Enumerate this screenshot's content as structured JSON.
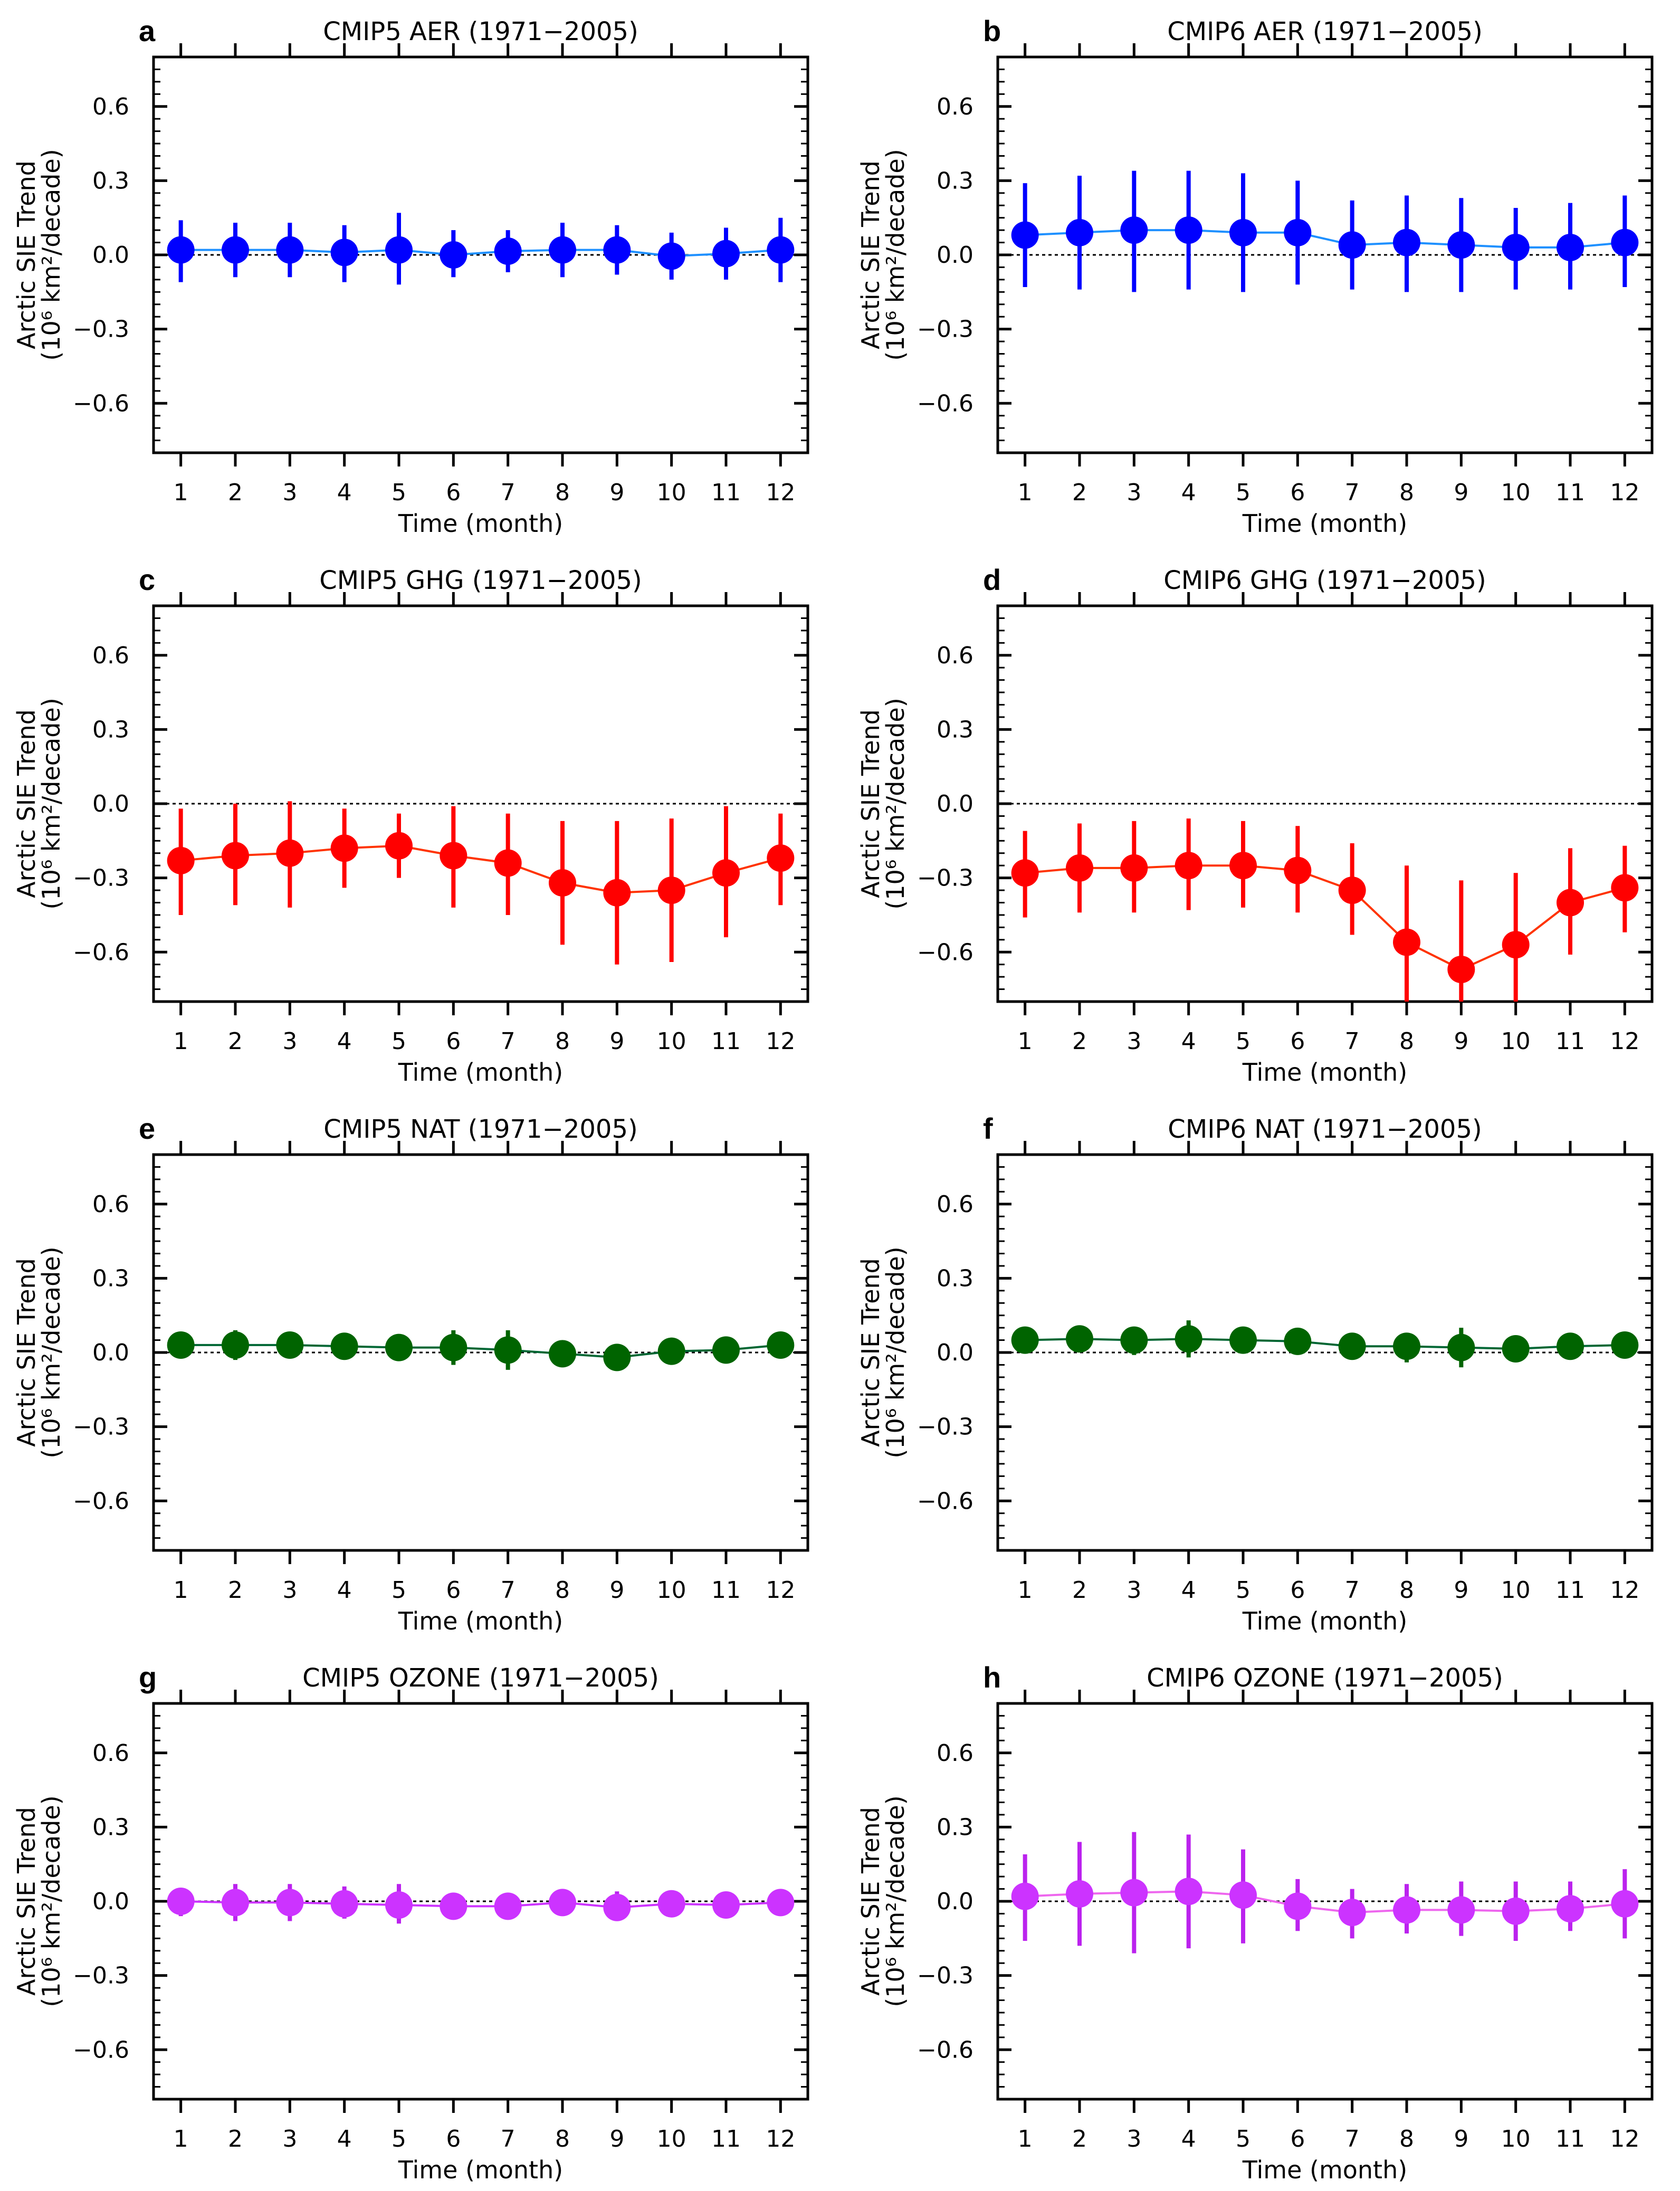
{
  "chart_data": [
    {
      "id": "a",
      "type": "line",
      "letter": "a",
      "title": "CMIP5 AER (1971−2005)",
      "xlabel": "Time (month)",
      "ylabel_line1": "Arctic SIE Trend",
      "ylabel_line2": "(10⁶ km²/decade)",
      "x": [
        1,
        2,
        3,
        4,
        5,
        6,
        7,
        8,
        9,
        10,
        11,
        12
      ],
      "xticklabels": [
        "1",
        "2",
        "3",
        "4",
        "5",
        "6",
        "7",
        "8",
        "9",
        "10",
        "11",
        "12"
      ],
      "yticks": [
        -0.6,
        -0.3,
        0.0,
        0.3,
        0.6
      ],
      "yticklabels": [
        "−0.6",
        "−0.3",
        "0.0",
        "0.3",
        "0.6"
      ],
      "ylim": [
        -0.8,
        0.8
      ],
      "xlim": [
        0.5,
        12.5
      ],
      "zero_line": "dashed",
      "line_color": "#1e90ff",
      "marker_color": "#0000ff",
      "bar_color": "#0000ff",
      "values": [
        0.02,
        0.02,
        0.02,
        0.01,
        0.02,
        0.0,
        0.015,
        0.02,
        0.02,
        -0.005,
        0.005,
        0.02
      ],
      "lower": [
        -0.11,
        -0.09,
        -0.09,
        -0.11,
        -0.12,
        -0.09,
        -0.07,
        -0.09,
        -0.08,
        -0.1,
        -0.1,
        -0.11
      ],
      "upper": [
        0.14,
        0.13,
        0.13,
        0.12,
        0.17,
        0.1,
        0.1,
        0.13,
        0.12,
        0.09,
        0.11,
        0.15
      ]
    },
    {
      "id": "b",
      "type": "line",
      "letter": "b",
      "title": "CMIP6 AER (1971−2005)",
      "xlabel": "Time (month)",
      "ylabel_line1": "Arctic SIE Trend",
      "ylabel_line2": "(10⁶ km²/decade)",
      "x": [
        1,
        2,
        3,
        4,
        5,
        6,
        7,
        8,
        9,
        10,
        11,
        12
      ],
      "xticklabels": [
        "1",
        "2",
        "3",
        "4",
        "5",
        "6",
        "7",
        "8",
        "9",
        "10",
        "11",
        "12"
      ],
      "yticks": [
        -0.6,
        -0.3,
        0.0,
        0.3,
        0.6
      ],
      "yticklabels": [
        "−0.6",
        "−0.3",
        "0.0",
        "0.3",
        "0.6"
      ],
      "ylim": [
        -0.8,
        0.8
      ],
      "xlim": [
        0.5,
        12.5
      ],
      "zero_line": "dashed",
      "line_color": "#1e90ff",
      "marker_color": "#0000ff",
      "bar_color": "#0000ff",
      "values": [
        0.08,
        0.09,
        0.1,
        0.1,
        0.09,
        0.09,
        0.04,
        0.05,
        0.04,
        0.03,
        0.03,
        0.05
      ],
      "lower": [
        -0.13,
        -0.14,
        -0.15,
        -0.14,
        -0.15,
        -0.12,
        -0.14,
        -0.15,
        -0.15,
        -0.14,
        -0.14,
        -0.13
      ],
      "upper": [
        0.29,
        0.32,
        0.34,
        0.34,
        0.33,
        0.3,
        0.22,
        0.24,
        0.23,
        0.19,
        0.21,
        0.24
      ]
    },
    {
      "id": "c",
      "type": "line",
      "letter": "c",
      "title": "CMIP5 GHG (1971−2005)",
      "xlabel": "Time (month)",
      "ylabel_line1": "Arctic SIE Trend",
      "ylabel_line2": "(10⁶ km²/decade)",
      "x": [
        1,
        2,
        3,
        4,
        5,
        6,
        7,
        8,
        9,
        10,
        11,
        12
      ],
      "xticklabels": [
        "1",
        "2",
        "3",
        "4",
        "5",
        "6",
        "7",
        "8",
        "9",
        "10",
        "11",
        "12"
      ],
      "yticks": [
        -0.6,
        -0.3,
        0.0,
        0.3,
        0.6
      ],
      "yticklabels": [
        "−0.6",
        "−0.3",
        "0.0",
        "0.3",
        "0.6"
      ],
      "ylim": [
        -0.8,
        0.8
      ],
      "xlim": [
        0.5,
        12.5
      ],
      "zero_line": "dashed",
      "line_color": "#ff3300",
      "marker_color": "#ff0000",
      "bar_color": "#ff0000",
      "values": [
        -0.23,
        -0.21,
        -0.2,
        -0.18,
        -0.17,
        -0.21,
        -0.24,
        -0.32,
        -0.36,
        -0.35,
        -0.28,
        -0.22
      ],
      "lower": [
        -0.45,
        -0.41,
        -0.42,
        -0.34,
        -0.3,
        -0.42,
        -0.45,
        -0.57,
        -0.65,
        -0.64,
        -0.54,
        -0.41
      ],
      "upper": [
        -0.02,
        0.0,
        0.01,
        -0.02,
        -0.04,
        -0.01,
        -0.04,
        -0.07,
        -0.07,
        -0.06,
        -0.01,
        -0.04
      ]
    },
    {
      "id": "d",
      "type": "line",
      "letter": "d",
      "title": "CMIP6 GHG (1971−2005)",
      "xlabel": "Time (month)",
      "ylabel_line1": "Arctic SIE Trend",
      "ylabel_line2": "(10⁶ km²/decade)",
      "x": [
        1,
        2,
        3,
        4,
        5,
        6,
        7,
        8,
        9,
        10,
        11,
        12
      ],
      "xticklabels": [
        "1",
        "2",
        "3",
        "4",
        "5",
        "6",
        "7",
        "8",
        "9",
        "10",
        "11",
        "12"
      ],
      "yticks": [
        -0.6,
        -0.3,
        0.0,
        0.3,
        0.6
      ],
      "yticklabels": [
        "−0.6",
        "−0.3",
        "0.0",
        "0.3",
        "0.6"
      ],
      "ylim": [
        -0.8,
        0.8
      ],
      "xlim": [
        0.5,
        12.5
      ],
      "zero_line": "dashed",
      "line_color": "#ff3300",
      "marker_color": "#ff0000",
      "bar_color": "#ff0000",
      "values": [
        -0.28,
        -0.26,
        -0.26,
        -0.25,
        -0.25,
        -0.27,
        -0.35,
        -0.56,
        -0.67,
        -0.57,
        -0.4,
        -0.34
      ],
      "lower": [
        -0.46,
        -0.44,
        -0.44,
        -0.43,
        -0.42,
        -0.44,
        -0.53,
        -0.8,
        -0.8,
        -0.8,
        -0.61,
        -0.52
      ],
      "upper": [
        -0.11,
        -0.08,
        -0.07,
        -0.06,
        -0.07,
        -0.09,
        -0.16,
        -0.25,
        -0.31,
        -0.28,
        -0.18,
        -0.17
      ]
    },
    {
      "id": "e",
      "type": "line",
      "letter": "e",
      "title": "CMIP5 NAT (1971−2005)",
      "xlabel": "Time (month)",
      "ylabel_line1": "Arctic SIE Trend",
      "ylabel_line2": "(10⁶ km²/decade)",
      "x": [
        1,
        2,
        3,
        4,
        5,
        6,
        7,
        8,
        9,
        10,
        11,
        12
      ],
      "xticklabels": [
        "1",
        "2",
        "3",
        "4",
        "5",
        "6",
        "7",
        "8",
        "9",
        "10",
        "11",
        "12"
      ],
      "yticks": [
        -0.6,
        -0.3,
        0.0,
        0.3,
        0.6
      ],
      "yticklabels": [
        "−0.6",
        "−0.3",
        "0.0",
        "0.3",
        "0.6"
      ],
      "ylim": [
        -0.8,
        0.8
      ],
      "xlim": [
        0.5,
        12.5
      ],
      "zero_line": "dashed",
      "line_color": "#006633",
      "marker_color": "#006400",
      "bar_color": "#006400",
      "values": [
        0.03,
        0.03,
        0.03,
        0.025,
        0.02,
        0.02,
        0.01,
        -0.005,
        -0.02,
        0.005,
        0.01,
        0.03
      ],
      "lower": [
        -0.02,
        -0.03,
        -0.02,
        -0.02,
        -0.02,
        -0.05,
        -0.07,
        -0.04,
        -0.06,
        -0.04,
        -0.02,
        -0.02
      ],
      "upper": [
        0.07,
        0.09,
        0.08,
        0.06,
        0.05,
        0.09,
        0.09,
        0.03,
        0.02,
        0.05,
        0.04,
        0.08
      ]
    },
    {
      "id": "f",
      "type": "line",
      "letter": "f",
      "title": "CMIP6 NAT (1971−2005)",
      "xlabel": "Time (month)",
      "ylabel_line1": "Arctic SIE Trend",
      "ylabel_line2": "(10⁶ km²/decade)",
      "x": [
        1,
        2,
        3,
        4,
        5,
        6,
        7,
        8,
        9,
        10,
        11,
        12
      ],
      "xticklabels": [
        "1",
        "2",
        "3",
        "4",
        "5",
        "6",
        "7",
        "8",
        "9",
        "10",
        "11",
        "12"
      ],
      "yticks": [
        -0.6,
        -0.3,
        0.0,
        0.3,
        0.6
      ],
      "yticklabels": [
        "−0.6",
        "−0.3",
        "0.0",
        "0.3",
        "0.6"
      ],
      "ylim": [
        -0.8,
        0.8
      ],
      "xlim": [
        0.5,
        12.5
      ],
      "zero_line": "dashed",
      "line_color": "#006633",
      "marker_color": "#006400",
      "bar_color": "#006400",
      "values": [
        0.05,
        0.055,
        0.05,
        0.055,
        0.05,
        0.045,
        0.025,
        0.025,
        0.02,
        0.015,
        0.025,
        0.03
      ],
      "lower": [
        0.0,
        0.0,
        -0.01,
        -0.02,
        0.0,
        0.0,
        -0.02,
        -0.04,
        -0.06,
        -0.03,
        -0.01,
        -0.01
      ],
      "upper": [
        0.09,
        0.1,
        0.1,
        0.13,
        0.1,
        0.09,
        0.06,
        0.08,
        0.1,
        0.06,
        0.06,
        0.07
      ]
    },
    {
      "id": "g",
      "type": "line",
      "letter": "g",
      "title": "CMIP5 OZONE (1971−2005)",
      "xlabel": "Time (month)",
      "ylabel_line1": "Arctic SIE Trend",
      "ylabel_line2": "(10⁶ km²/decade)",
      "x": [
        1,
        2,
        3,
        4,
        5,
        6,
        7,
        8,
        9,
        10,
        11,
        12
      ],
      "xticklabels": [
        "1",
        "2",
        "3",
        "4",
        "5",
        "6",
        "7",
        "8",
        "9",
        "10",
        "11",
        "12"
      ],
      "yticks": [
        -0.6,
        -0.3,
        0.0,
        0.3,
        0.6
      ],
      "yticklabels": [
        "−0.6",
        "−0.3",
        "0.0",
        "0.3",
        "0.6"
      ],
      "ylim": [
        -0.8,
        0.8
      ],
      "xlim": [
        0.5,
        12.5
      ],
      "zero_line": "dashed",
      "line_color": "#cc33ff",
      "marker_color": "#cc33ff",
      "bar_color": "#bb22ee",
      "values": [
        0.0,
        -0.005,
        -0.005,
        -0.01,
        -0.015,
        -0.02,
        -0.02,
        -0.005,
        -0.025,
        -0.01,
        -0.015,
        -0.005
      ],
      "lower": [
        -0.06,
        -0.08,
        -0.08,
        -0.07,
        -0.09,
        -0.06,
        -0.05,
        -0.04,
        -0.08,
        -0.05,
        -0.05,
        -0.03
      ],
      "upper": [
        0.05,
        0.07,
        0.07,
        0.06,
        0.07,
        0.03,
        0.02,
        0.04,
        0.04,
        0.03,
        0.03,
        0.02
      ]
    },
    {
      "id": "h",
      "type": "line",
      "letter": "h",
      "title": "CMIP6 OZONE (1971−2005)",
      "xlabel": "Time (month)",
      "ylabel_line1": "Arctic SIE Trend",
      "ylabel_line2": "(10⁶ km²/decade)",
      "x": [
        1,
        2,
        3,
        4,
        5,
        6,
        7,
        8,
        9,
        10,
        11,
        12
      ],
      "xticklabels": [
        "1",
        "2",
        "3",
        "4",
        "5",
        "6",
        "7",
        "8",
        "9",
        "10",
        "11",
        "12"
      ],
      "yticks": [
        -0.6,
        -0.3,
        0.0,
        0.3,
        0.6
      ],
      "yticklabels": [
        "−0.6",
        "−0.3",
        "0.0",
        "0.3",
        "0.6"
      ],
      "ylim": [
        -0.8,
        0.8
      ],
      "xlim": [
        0.5,
        12.5
      ],
      "zero_line": "dashed",
      "line_color": "#ee66ee",
      "marker_color": "#cc33ff",
      "bar_color": "#bb22ee",
      "values": [
        0.02,
        0.03,
        0.035,
        0.04,
        0.025,
        -0.02,
        -0.045,
        -0.035,
        -0.035,
        -0.04,
        -0.03,
        -0.01
      ],
      "lower": [
        -0.16,
        -0.18,
        -0.21,
        -0.19,
        -0.17,
        -0.12,
        -0.15,
        -0.13,
        -0.14,
        -0.16,
        -0.12,
        -0.15
      ],
      "upper": [
        0.19,
        0.24,
        0.28,
        0.27,
        0.21,
        0.09,
        0.05,
        0.07,
        0.08,
        0.08,
        0.08,
        0.13
      ]
    }
  ]
}
